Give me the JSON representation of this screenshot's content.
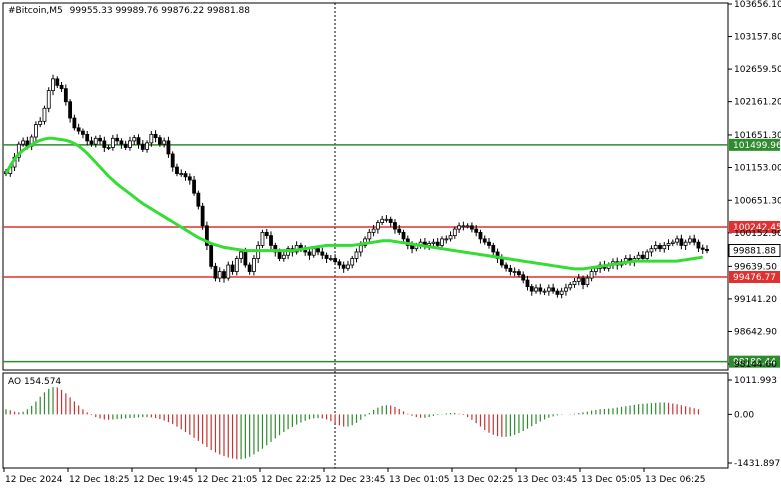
{
  "header": {
    "symbol": "#Bitcoin,M5",
    "ohlc": "99955.33 99989.76 99876.22 99881.88"
  },
  "indicator": {
    "label": "AO 154.574"
  },
  "price_axis": {
    "ticks": [
      "103656.10",
      "103157.80",
      "102659.50",
      "102161.20",
      "101651.30",
      "101153.00",
      "100651.30",
      "100152.90",
      "99639.50",
      "99141.20",
      "98642.90",
      "98144.60"
    ],
    "ao_ticks": [
      "1011.993",
      "0.00",
      "-1431.897"
    ]
  },
  "time_axis": {
    "labels": [
      "12 Dec 2024",
      "12 Dec 18:25",
      "12 Dec 19:45",
      "12 Dec 21:05",
      "12 Dec 22:25",
      "12 Dec 23:45",
      "13 Dec 01:05",
      "13 Dec 02:25",
      "13 Dec 03:45",
      "13 Dec 05:05",
      "13 Dec 06:25"
    ]
  },
  "levels": [
    {
      "label": "101499.96",
      "value": 101499.96,
      "color": "#2e8b2e",
      "style": "line"
    },
    {
      "label": "100242.45",
      "value": 100242.45,
      "color": "#e03030",
      "style": "line"
    },
    {
      "label": "99476.77",
      "value": 99476.77,
      "color": "#e03030",
      "style": "line"
    },
    {
      "label": "98180.44",
      "value": 98180.44,
      "color": "#2e8b2e",
      "style": "line"
    }
  ],
  "current_price": {
    "label": "99881.88",
    "value": 99881.88
  },
  "chart_data": {
    "type": "candlestick",
    "timeframe": "M5",
    "ylim": [
      98100,
      103700
    ],
    "closes": [
      101060,
      101160,
      101310,
      101510,
      101560,
      101480,
      101620,
      101810,
      101860,
      102060,
      102330,
      102510,
      102410,
      102360,
      102160,
      101910,
      101760,
      101710,
      101660,
      101560,
      101510,
      101600,
      101560,
      101460,
      101460,
      101600,
      101560,
      101510,
      101460,
      101560,
      101610,
      101510,
      101430,
      101530,
      101660,
      101610,
      101510,
      101560,
      101360,
      101160,
      101060,
      101060,
      101010,
      100960,
      100760,
      100560,
      100260,
      99960,
      99640,
      99460,
      99560,
      99460,
      99660,
      99560,
      99760,
      99860,
      99660,
      99560,
      99760,
      99960,
      100160,
      100110,
      99960,
      99860,
      99760,
      99810,
      99910,
      99860,
      99960,
      99910,
      99860,
      99810,
      99910,
      99860,
      99810,
      99760,
      99760,
      99710,
      99660,
      99610,
      99660,
      99760,
      99860,
      99960,
      100060,
      100160,
      100210,
      100310,
      100360,
      100360,
      100310,
      100210,
      100160,
      100060,
      99960,
      99910,
      99960,
      100010,
      99960,
      99990,
      100010,
      99960,
      100060,
      100060,
      100110,
      100210,
      100260,
      100260,
      100260,
      100210,
      100160,
      100060,
      100010,
      99960,
      99860,
      99760,
      99660,
      99610,
      99560,
      99560,
      99510,
      99430,
      99330,
      99260,
      99310,
      99260,
      99260,
      99310,
      99260,
      99210,
      99260,
      99310,
      99360,
      99410,
      99460,
      99360,
      99460,
      99560,
      99610,
      99660,
      99610,
      99660,
      99710,
      99660,
      99710,
      99760,
      99710,
      99760,
      99810,
      99760,
      99860,
      99910,
      99960,
      99910,
      99960,
      99990,
      100010,
      100060,
      99960,
      100010,
      100060,
      100010,
      99920,
      99900,
      99880
    ],
    "ma": [
      101060,
      101180,
      101280,
      101360,
      101420,
      101460,
      101500,
      101540,
      101570,
      101590,
      101600,
      101600,
      101590,
      101580,
      101570,
      101550,
      101520,
      101480,
      101430,
      101370,
      101300,
      101230,
      101160,
      101090,
      101020,
      100960,
      100900,
      100850,
      100800,
      100750,
      100700,
      100650,
      100600,
      100560,
      100520,
      100480,
      100440,
      100400,
      100360,
      100320,
      100280,
      100240,
      100200,
      100160,
      100120,
      100080,
      100050,
      100020,
      99990,
      99970,
      99950,
      99930,
      99920,
      99910,
      99900,
      99890,
      99880,
      99880,
      99880,
      99880,
      99880,
      99880,
      99880,
      99880,
      99880,
      99880,
      99880,
      99880,
      99890,
      99900,
      99910,
      99920,
      99930,
      99940,
      99950,
      99960,
      99960,
      99960,
      99960,
      99960,
      99960,
      99960,
      99970,
      99980,
      99990,
      100000,
      100010,
      100020,
      100030,
      100030,
      100030,
      100020,
      100010,
      100000,
      99990,
      99980,
      99970,
      99960,
      99950,
      99940,
      99930,
      99920,
      99910,
      99900,
      99890,
      99880,
      99870,
      99860,
      99850,
      99840,
      99830,
      99820,
      99810,
      99800,
      99790,
      99780,
      99770,
      99760,
      99750,
      99740,
      99730,
      99720,
      99710,
      99700,
      99690,
      99680,
      99670,
      99660,
      99650,
      99640,
      99630,
      99620,
      99610,
      99600,
      99600,
      99600,
      99610,
      99620,
      99630,
      99640,
      99650,
      99660,
      99670,
      99680,
      99690,
      99700,
      99710,
      99720,
      99720,
      99720,
      99720,
      99720,
      99720,
      99720,
      99720,
      99720,
      99720,
      99720,
      99730,
      99740,
      99750,
      99760,
      99770,
      99780
    ],
    "ao_ylim": [
      -1431.897,
      1011.993
    ],
    "ao": [
      150,
      120,
      80,
      60,
      80,
      150,
      250,
      380,
      520,
      650,
      750,
      800,
      790,
      720,
      620,
      500,
      380,
      260,
      150,
      60,
      -20,
      -80,
      -120,
      -150,
      -160,
      -150,
      -140,
      -130,
      -120,
      -110,
      -100,
      -90,
      -80,
      -80,
      -90,
      -110,
      -140,
      -180,
      -230,
      -290,
      -360,
      -440,
      -520,
      -600,
      -690,
      -780,
      -870,
      -960,
      -1050,
      -1120,
      -1180,
      -1230,
      -1270,
      -1300,
      -1320,
      -1320,
      -1300,
      -1250,
      -1180,
      -1100,
      -1010,
      -910,
      -810,
      -710,
      -610,
      -520,
      -440,
      -370,
      -300,
      -240,
      -190,
      -150,
      -120,
      -110,
      -120,
      -150,
      -200,
      -260,
      -320,
      -360,
      -360,
      -320,
      -250,
      -160,
      -60,
      40,
      130,
      200,
      250,
      270,
      260,
      220,
      160,
      90,
      20,
      -40,
      -80,
      -100,
      -100,
      -80,
      -50,
      -20,
      10,
      30,
      40,
      40,
      20,
      -20,
      -80,
      -160,
      -260,
      -360,
      -460,
      -540,
      -600,
      -640,
      -660,
      -660,
      -640,
      -600,
      -550,
      -490,
      -420,
      -350,
      -280,
      -210,
      -150,
      -100,
      -60,
      -30,
      -10,
      0,
      10,
      20,
      40,
      60,
      80,
      110,
      130,
      150,
      160,
      170,
      180,
      200,
      220,
      240,
      260,
      280,
      300,
      310,
      320,
      330,
      340,
      350,
      350,
      340,
      320,
      300,
      270,
      240,
      210,
      180,
      150
    ],
    "xlabels": [
      "12 Dec 2024",
      "12 Dec 18:25",
      "12 Dec 19:45",
      "12 Dec 21:05",
      "12 Dec 22:25",
      "12 Dec 23:45",
      "13 Dec 01:05",
      "13 Dec 02:25",
      "13 Dec 03:45",
      "13 Dec 05:05",
      "13 Dec 06:25"
    ],
    "colors": {
      "candles": "#000000",
      "ma": "#33dd33",
      "ao_up": "#2e8b2e",
      "ao_down": "#c83232"
    }
  }
}
